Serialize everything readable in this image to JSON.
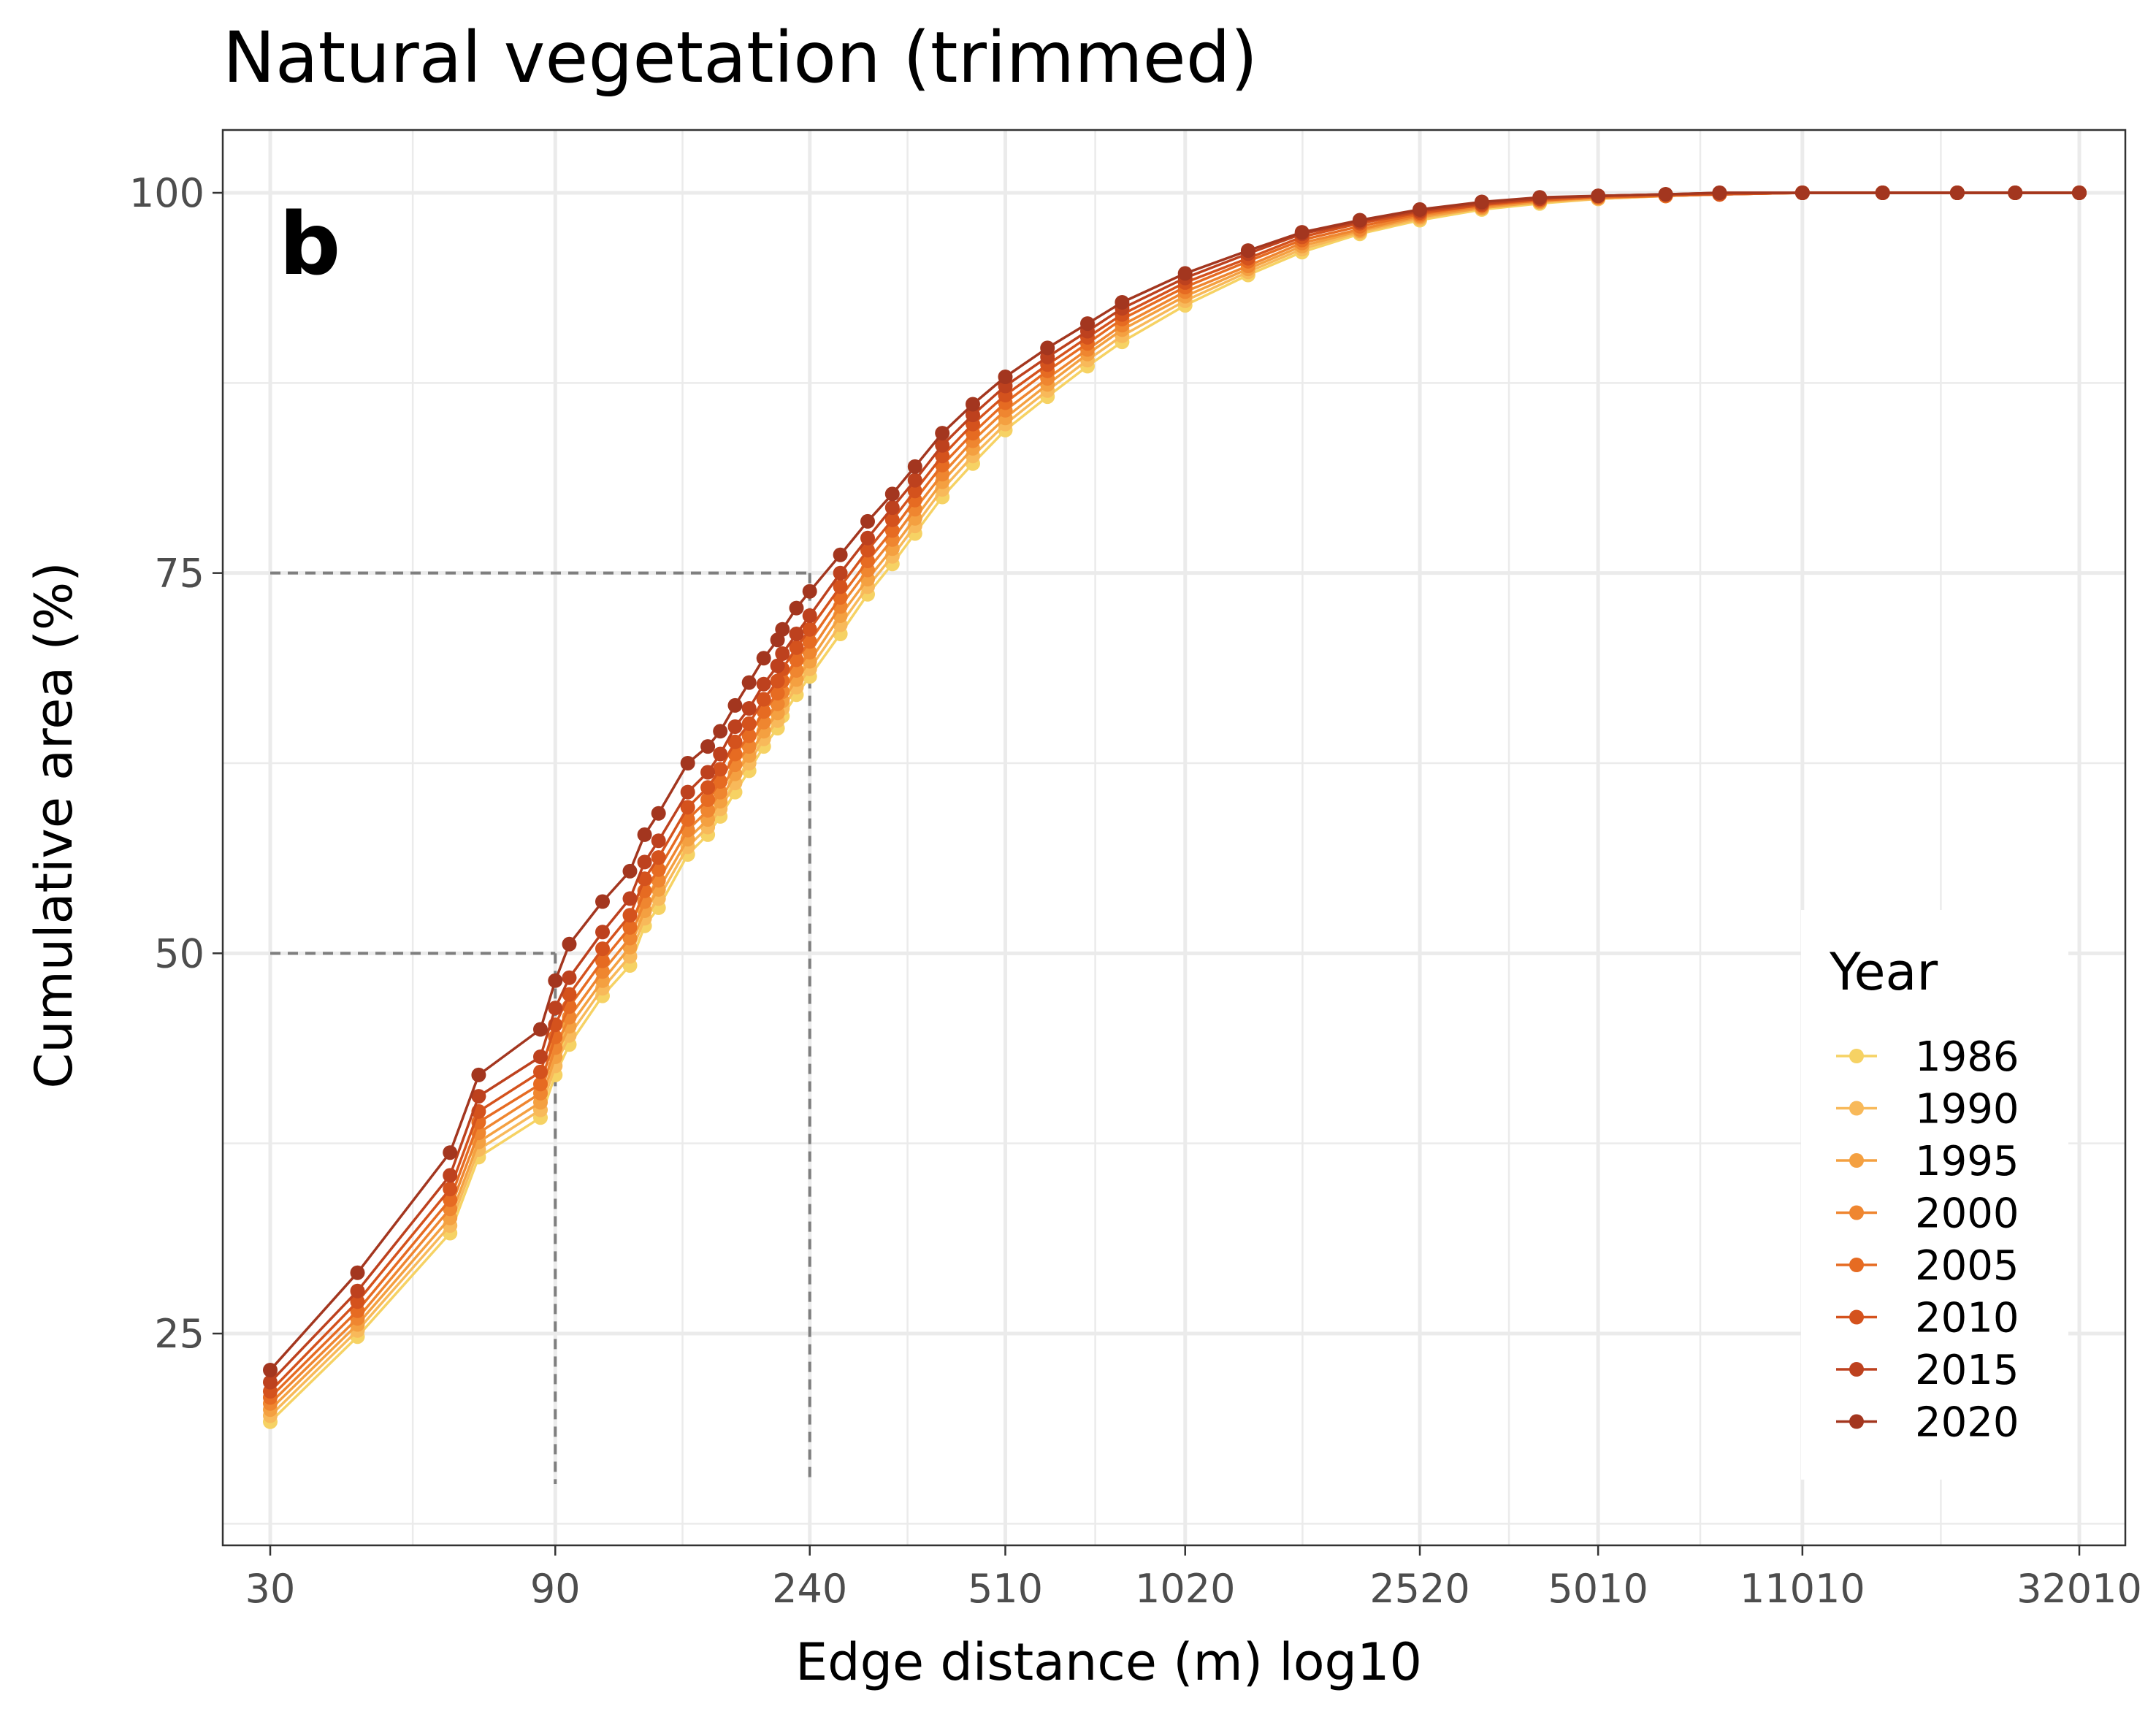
{
  "chart_data": {
    "type": "line",
    "title": "Natural vegetation (trimmed)",
    "panel_label": "b",
    "xlabel": "Edge distance (m) log10",
    "ylabel": "Cumulative area (%)",
    "x_scale": "log10",
    "x_ticks": [
      30,
      90,
      240,
      510,
      1020,
      2520,
      5010,
      11010,
      32010
    ],
    "y_ticks": [
      25,
      50,
      75,
      100
    ],
    "xlim": [
      30,
      32010
    ],
    "ylim": [
      12,
      104
    ],
    "grid": true,
    "legend_title": "Year",
    "legend_position": "right",
    "reference_lines": [
      {
        "x": 90,
        "y": 50
      },
      {
        "x": 240,
        "y": 75
      }
    ],
    "x": [
      30,
      42,
      60,
      67,
      85,
      90,
      95,
      108,
      120,
      127,
      134,
      150,
      162,
      170,
      180,
      190,
      201,
      212,
      216,
      228,
      240,
      270,
      300,
      330,
      360,
      400,
      450,
      510,
      600,
      700,
      800,
      1020,
      1300,
      1600,
      2000,
      2520,
      3200,
      4000,
      5010,
      6500,
      8000,
      11010,
      15000,
      20000,
      25000,
      32010
    ],
    "series": [
      {
        "name": "1986",
        "values": [
          19.2,
          24.8,
          31.6,
          36.6,
          39.2,
          42.0,
          44.0,
          47.2,
          49.2,
          51.8,
          53.0,
          56.5,
          57.8,
          59.0,
          60.6,
          62.0,
          63.6,
          64.8,
          65.6,
          67.0,
          68.2,
          71.0,
          73.6,
          75.6,
          77.6,
          80.0,
          82.2,
          84.4,
          86.6,
          88.6,
          90.2,
          92.6,
          94.6,
          96.1,
          97.3,
          98.2,
          98.9,
          99.3,
          99.6,
          99.8,
          99.9,
          100.0,
          100.0,
          100.0,
          100.0,
          100.0
        ]
      },
      {
        "name": "1990",
        "values": [
          19.6,
          25.2,
          32.1,
          37.1,
          39.7,
          42.6,
          44.6,
          47.7,
          49.8,
          52.3,
          53.6,
          57.0,
          58.3,
          59.5,
          61.2,
          62.5,
          64.1,
          65.3,
          66.1,
          67.5,
          68.7,
          71.6,
          74.1,
          76.1,
          78.1,
          80.5,
          82.7,
          84.8,
          87.0,
          89.0,
          90.6,
          92.9,
          94.8,
          96.3,
          97.4,
          98.3,
          99.0,
          99.4,
          99.6,
          99.8,
          99.9,
          100.0,
          100.0,
          100.0,
          100.0,
          100.0
        ]
      },
      {
        "name": "1995",
        "values": [
          20.0,
          25.6,
          32.6,
          37.6,
          40.2,
          43.2,
          45.2,
          48.2,
          50.4,
          52.8,
          54.2,
          57.5,
          58.8,
          60.0,
          61.8,
          63.0,
          64.6,
          65.8,
          66.6,
          68.0,
          69.2,
          72.2,
          74.6,
          76.6,
          78.6,
          81.0,
          83.2,
          85.2,
          87.4,
          89.4,
          91.0,
          93.2,
          95.0,
          96.5,
          97.5,
          98.4,
          99.0,
          99.4,
          99.7,
          99.8,
          99.9,
          100.0,
          100.0,
          100.0,
          100.0,
          100.0
        ]
      },
      {
        "name": "2000",
        "values": [
          20.4,
          26.0,
          33.2,
          38.2,
          40.8,
          43.8,
          45.8,
          48.8,
          51.0,
          53.4,
          54.8,
          58.1,
          59.4,
          60.6,
          62.4,
          63.6,
          65.2,
          66.4,
          67.2,
          68.6,
          69.8,
          72.8,
          75.2,
          77.2,
          79.2,
          81.5,
          83.7,
          85.7,
          87.8,
          89.7,
          91.3,
          93.5,
          95.2,
          96.7,
          97.6,
          98.5,
          99.1,
          99.5,
          99.7,
          99.8,
          99.9,
          100.0,
          100.0,
          100.0,
          100.0,
          100.0
        ]
      },
      {
        "name": "2005",
        "values": [
          20.8,
          26.5,
          33.8,
          38.9,
          41.4,
          44.5,
          46.5,
          49.5,
          51.7,
          54.1,
          55.5,
          58.8,
          60.1,
          61.3,
          63.1,
          64.3,
          65.9,
          67.1,
          67.9,
          69.3,
          70.5,
          73.4,
          75.8,
          77.8,
          79.8,
          82.1,
          84.2,
          86.2,
          88.3,
          90.1,
          91.7,
          93.8,
          95.5,
          96.9,
          97.8,
          98.6,
          99.2,
          99.5,
          99.7,
          99.8,
          99.9,
          100.0,
          100.0,
          100.0,
          100.0,
          100.0
        ]
      },
      {
        "name": "2010",
        "values": [
          21.2,
          27.1,
          34.5,
          39.6,
          42.2,
          45.3,
          47.3,
          50.3,
          52.5,
          54.9,
          56.3,
          59.6,
          60.9,
          62.1,
          63.9,
          65.1,
          66.7,
          67.9,
          68.7,
          70.1,
          71.3,
          74.1,
          76.5,
          78.5,
          80.4,
          82.7,
          84.8,
          86.7,
          88.7,
          90.5,
          92.0,
          94.1,
          95.7,
          97.1,
          98.0,
          98.7,
          99.2,
          99.6,
          99.8,
          99.9,
          99.9,
          100.0,
          100.0,
          100.0,
          100.0,
          100.0
        ]
      },
      {
        "name": "2015",
        "values": [
          21.8,
          27.8,
          35.4,
          40.6,
          43.2,
          46.4,
          48.4,
          51.4,
          53.6,
          56.0,
          57.4,
          60.6,
          61.9,
          63.1,
          64.9,
          66.1,
          67.7,
          68.9,
          69.7,
          71.0,
          72.2,
          75.0,
          77.3,
          79.3,
          81.1,
          83.4,
          85.4,
          87.3,
          89.2,
          90.9,
          92.4,
          94.4,
          96.0,
          97.3,
          98.1,
          98.8,
          99.3,
          99.6,
          99.8,
          99.9,
          100.0,
          100.0,
          100.0,
          100.0,
          100.0,
          100.0
        ]
      },
      {
        "name": "2020",
        "values": [
          22.6,
          29.0,
          36.9,
          42.0,
          45.0,
          48.2,
          50.6,
          53.4,
          55.4,
          57.8,
          59.2,
          62.5,
          63.6,
          64.6,
          66.3,
          67.8,
          69.4,
          70.6,
          71.3,
          72.7,
          73.8,
          76.2,
          78.4,
          80.2,
          82.0,
          84.2,
          86.1,
          87.9,
          89.8,
          91.4,
          92.8,
          94.7,
          96.2,
          97.4,
          98.2,
          98.9,
          99.4,
          99.7,
          99.8,
          99.9,
          100.0,
          100.0,
          100.0,
          100.0,
          100.0,
          100.0
        ]
      }
    ],
    "colors": [
      "#f6d264",
      "#f8b95a",
      "#f4a041",
      "#ef8630",
      "#e66b22",
      "#d4521d",
      "#bd411e",
      "#a3361f"
    ]
  }
}
